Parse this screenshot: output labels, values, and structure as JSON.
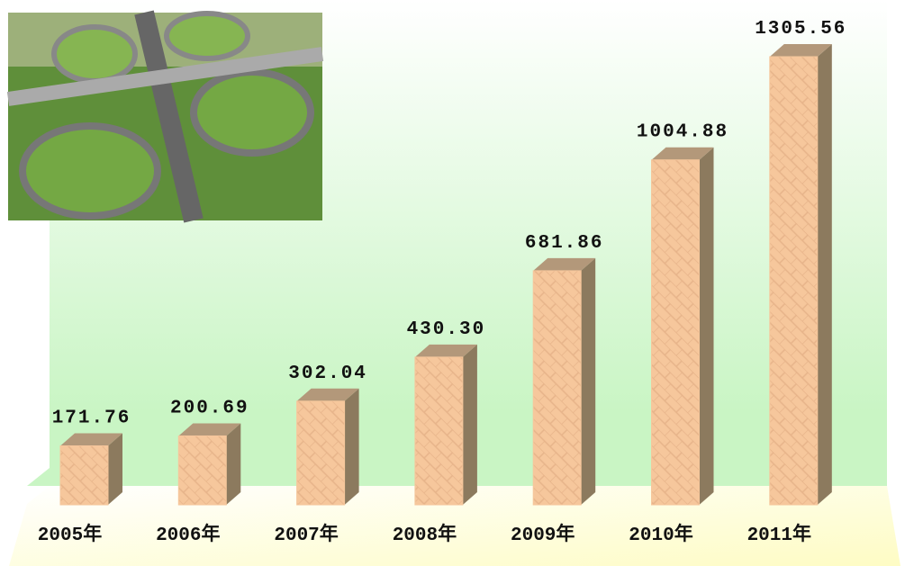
{
  "chart_data": {
    "type": "bar3d",
    "categories": [
      "2005年",
      "2006年",
      "2007年",
      "2008年",
      "2009年",
      "2010年",
      "2011年"
    ],
    "values": [
      171.76,
      200.69,
      302.04,
      430.3,
      681.86,
      1004.88,
      1305.56
    ],
    "value_labels": [
      "171.76",
      "200.69",
      "302.04",
      "430.30",
      "681.86",
      "1004.88",
      "1305.56"
    ],
    "color": "#f6c79c"
  }
}
